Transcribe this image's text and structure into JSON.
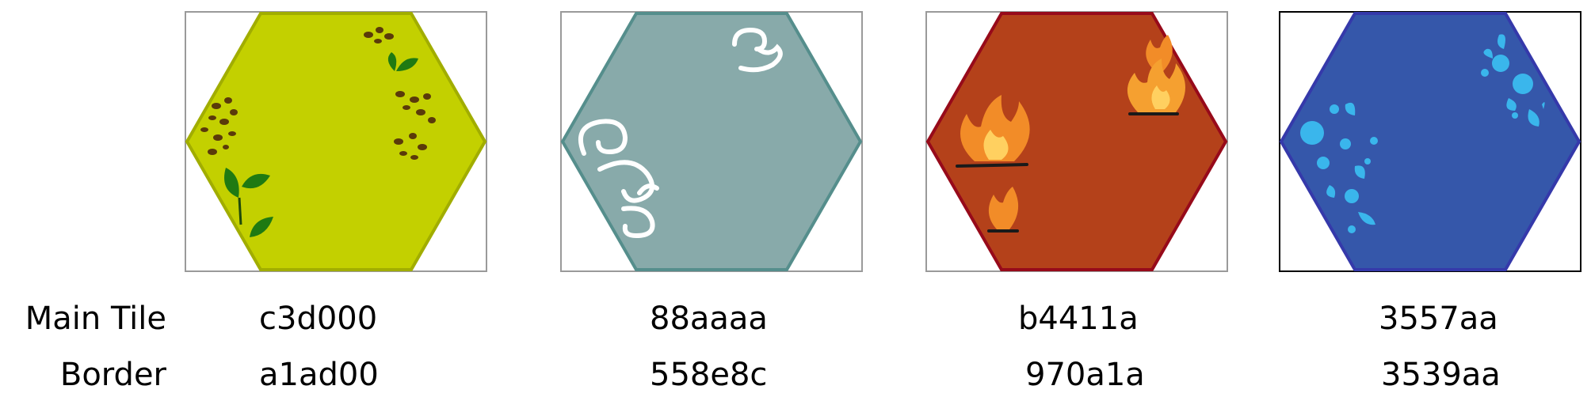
{
  "row_labels": {
    "main": "Main Tile",
    "border": "Border"
  },
  "tiles": [
    {
      "element": "earth",
      "main_code": "c3d000",
      "border_code": "a1ad00",
      "main_color": "#c3d000",
      "border_color": "#a1ad00",
      "frame_color": "#9a9a9a"
    },
    {
      "element": "air",
      "main_code": "88aaaa",
      "border_code": "558e8c",
      "main_color": "#88aaaa",
      "border_color": "#558e8c",
      "frame_color": "#9a9a9a"
    },
    {
      "element": "fire",
      "main_code": "b4411a",
      "border_code": "970a1a",
      "main_color": "#b4411a",
      "border_color": "#970a1a",
      "frame_color": "#9a9a9a"
    },
    {
      "element": "water",
      "main_code": "3557aa",
      "border_code": "3539aa",
      "main_color": "#3557aa",
      "border_color": "#3539aa",
      "frame_color": "#000000"
    }
  ],
  "icons": {
    "earth": [
      "dirt-clump-icon",
      "sprout-icon"
    ],
    "air": [
      "wind-swirl-icon"
    ],
    "fire": [
      "flame-icon"
    ],
    "water": [
      "water-droplet-icon"
    ]
  }
}
